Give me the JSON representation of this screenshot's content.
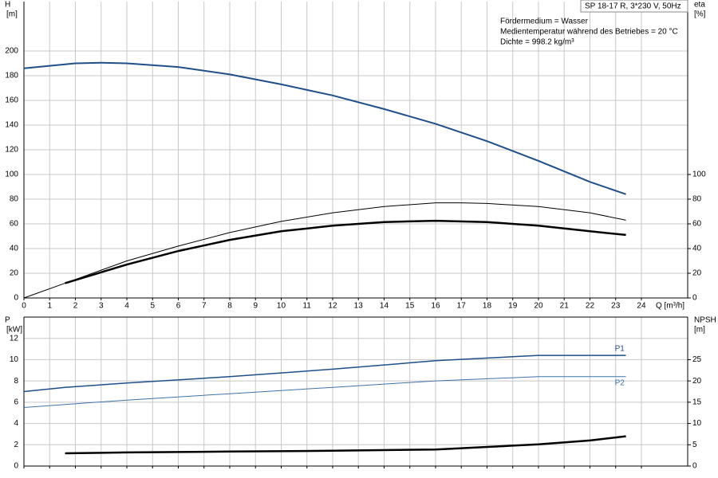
{
  "chart_data": [
    {
      "type": "line",
      "title": "SP 18-17 R, 3*230 V, 50Hz",
      "annotations": [
        "Fördermedium = Wasser",
        "Medientemperatur während des Betriebes = 20 °C",
        "Dichte = 998.2 kg/m³"
      ],
      "ylabel": [
        "H",
        "[m]"
      ],
      "y2label": [
        "eta",
        "[%]"
      ],
      "xlabel": "Q [m³/h]",
      "xlim": [
        0,
        25.8
      ],
      "xticks": [
        0,
        1,
        2,
        3,
        4,
        5,
        6,
        7,
        8,
        9,
        10,
        11,
        12,
        13,
        14,
        15,
        16,
        17,
        18,
        19,
        20,
        21,
        22,
        23,
        24
      ],
      "ylim": [
        0,
        240
      ],
      "yticks": [
        0,
        20,
        40,
        60,
        80,
        100,
        120,
        140,
        160,
        180,
        200
      ],
      "y2lim": [
        0,
        240
      ],
      "y2ticks": [
        0,
        20,
        40,
        60,
        80,
        100
      ],
      "grid": true,
      "show_xtick_labels": true,
      "series": [
        {
          "color": "#1f4e89",
          "width": 2,
          "x": [
            0,
            2,
            3,
            4,
            6,
            8,
            10,
            12,
            14,
            16,
            18,
            20,
            22,
            23.4
          ],
          "values": [
            186,
            190,
            190.5,
            190,
            187,
            181,
            173,
            164,
            153,
            141,
            127,
            111,
            94,
            84
          ]
        },
        {
          "color": "#000000",
          "width": 1,
          "axis": "y2",
          "x": [
            0,
            2,
            4,
            6,
            8,
            10,
            12,
            14,
            16,
            17,
            18,
            20,
            22,
            23.4
          ],
          "values": [
            0,
            15,
            30,
            42,
            53,
            62,
            69,
            74,
            77,
            77,
            76.5,
            74,
            69,
            63
          ]
        },
        {
          "color": "#000000",
          "width": 2.5,
          "axis": "y2",
          "x": [
            1.6,
            4,
            6,
            8,
            10,
            12,
            14,
            16,
            18,
            20,
            22,
            23.4
          ],
          "values": [
            12,
            27,
            38,
            47,
            54,
            58.5,
            61.5,
            62.5,
            61.5,
            58.5,
            54,
            51
          ]
        }
      ]
    },
    {
      "type": "line",
      "ylabel": [
        "P",
        "[kW]"
      ],
      "y2label": [
        "NPSH",
        "[m]"
      ],
      "xlim": [
        0,
        25.8
      ],
      "xticks": [
        0,
        1,
        2,
        3,
        4,
        5,
        6,
        7,
        8,
        9,
        10,
        11,
        12,
        13,
        14,
        15,
        16,
        17,
        18,
        19,
        20,
        21,
        22,
        23,
        24
      ],
      "ylim": [
        0,
        14
      ],
      "yticks": [
        0,
        2,
        4,
        6,
        8,
        10,
        12
      ],
      "y2lim": [
        0,
        35
      ],
      "y2ticks": [
        0,
        5,
        10,
        15,
        20,
        25
      ],
      "grid": true,
      "show_xtick_labels": false,
      "series": [
        {
          "name": "P1",
          "color": "#1f4e89",
          "width": 1.5,
          "x": [
            0,
            1.6,
            4,
            8,
            12,
            16,
            20,
            23.4
          ],
          "values": [
            7.0,
            7.4,
            7.8,
            8.4,
            9.1,
            9.9,
            10.4,
            10.4
          ]
        },
        {
          "name": "P2",
          "color": "#3f73a8",
          "width": 1,
          "x": [
            0,
            4,
            8,
            12,
            16,
            20,
            23.4
          ],
          "values": [
            5.5,
            6.2,
            6.8,
            7.4,
            8.0,
            8.4,
            8.4
          ]
        },
        {
          "color": "#000000",
          "width": 2.5,
          "axis": "y2",
          "x": [
            1.6,
            4,
            8,
            12,
            16,
            20,
            22,
            23.4
          ],
          "values": [
            3.0,
            3.2,
            3.4,
            3.6,
            3.9,
            5.1,
            6.0,
            7.0
          ]
        }
      ]
    }
  ]
}
